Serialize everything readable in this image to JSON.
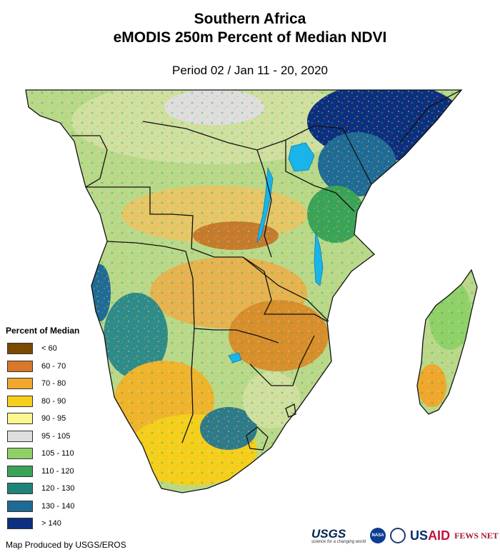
{
  "title": {
    "line1": "Southern Africa",
    "line2": "eMODIS 250m Percent of Median NDVI",
    "period": "Period 02 / Jan 11 - 20, 2020"
  },
  "legend": {
    "title": "Percent of Median",
    "items": [
      {
        "label": "< 60",
        "color": "#7a4a00"
      },
      {
        "label": "60 - 70",
        "color": "#d9772a"
      },
      {
        "label": "70 - 80",
        "color": "#f0a72c"
      },
      {
        "label": "80 - 90",
        "color": "#f5cf1b"
      },
      {
        "label": "90 - 95",
        "color": "#fbf88f"
      },
      {
        "label": "95 - 105",
        "color": "#dedede"
      },
      {
        "label": "105 - 110",
        "color": "#8fd169"
      },
      {
        "label": "110 - 120",
        "color": "#3aa357"
      },
      {
        "label": "120 - 130",
        "color": "#1f8478"
      },
      {
        "label": "130 - 140",
        "color": "#1f6a96"
      },
      {
        "label": "> 140",
        "color": "#0c2f7f"
      }
    ]
  },
  "credit": "Map Produced by USGS/EROS",
  "logos": {
    "usgs": "USGS",
    "usgs_tagline": "science for a changing world",
    "nasa": "NASA",
    "usaid_a": "US",
    "usaid_b": "AID",
    "fews": "FEWS NET"
  },
  "colors": {
    "water": "#19b4ea",
    "border": "#111111"
  }
}
